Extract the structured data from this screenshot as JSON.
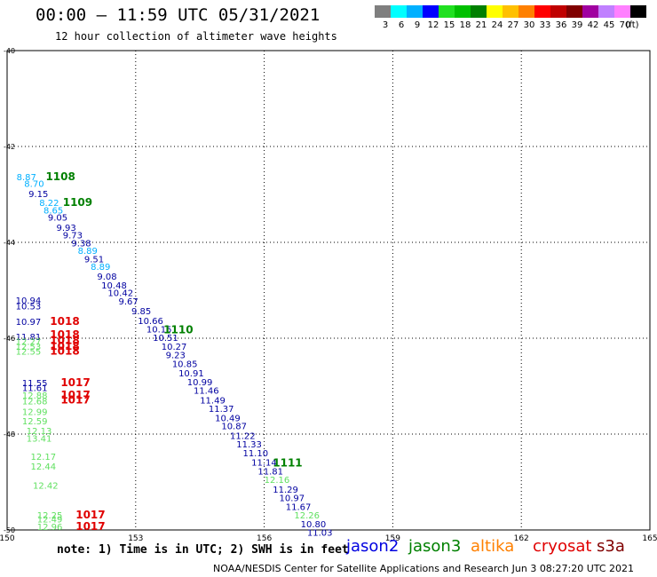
{
  "header": {
    "title": "00:00 — 11:59 UTC 05/31/2021",
    "subtitle": "12 hour collection of altimeter wave heights"
  },
  "colorbar": {
    "colors": [
      "#7f7f7f",
      "#00ffff",
      "#00b0ff",
      "#0000ff",
      "#20e020",
      "#00c000",
      "#008000",
      "#ffff00",
      "#ffc000",
      "#ff8000",
      "#ff0000",
      "#c00000",
      "#800000",
      "#a000a0",
      "#c080ff",
      "#ff80ff",
      "#000000"
    ],
    "labels": [
      "3",
      "6",
      "9",
      "12",
      "15",
      "18",
      "21",
      "24",
      "27",
      "30",
      "33",
      "36",
      "39",
      "42",
      "45",
      "70",
      "(ft)"
    ]
  },
  "chart_data": {
    "type": "scatter",
    "title": "12 hour collection of altimeter wave heights",
    "x_label": "",
    "y_label": "",
    "xlim": [
      150,
      165
    ],
    "ylim": [
      -50,
      -40
    ],
    "x_ticks": [
      "150",
      "153",
      "156",
      "159",
      "162",
      "165"
    ],
    "y_ticks": [
      "-40",
      "-42",
      "-44",
      "-46",
      "-48",
      "-50"
    ],
    "grid": true,
    "wave_heights": [
      {
        "lon": 150.22,
        "lat": -42.7,
        "text": "8.87",
        "color": "#00b0ff"
      },
      {
        "lon": 150.4,
        "lat": -42.84,
        "text": "8.70",
        "color": "#00b0ff"
      },
      {
        "lon": 150.5,
        "lat": -43.06,
        "text": "9.15",
        "color": "#0000a0"
      },
      {
        "lon": 150.75,
        "lat": -43.24,
        "text": "8.22",
        "color": "#00b0ff"
      },
      {
        "lon": 150.85,
        "lat": -43.4,
        "text": "8.65",
        "color": "#00b0ff"
      },
      {
        "lon": 150.95,
        "lat": -43.55,
        "text": "9.05",
        "color": "#0000a0"
      },
      {
        "lon": 151.15,
        "lat": -43.76,
        "text": "9.93",
        "color": "#0000a0"
      },
      {
        "lon": 151.3,
        "lat": -43.92,
        "text": "9.73",
        "color": "#0000a0"
      },
      {
        "lon": 151.5,
        "lat": -44.08,
        "text": "9.38",
        "color": "#0000a0"
      },
      {
        "lon": 151.65,
        "lat": -44.24,
        "text": "8.89",
        "color": "#00b0ff"
      },
      {
        "lon": 151.8,
        "lat": -44.42,
        "text": "9.51",
        "color": "#0000a0"
      },
      {
        "lon": 151.95,
        "lat": -44.57,
        "text": "8.89",
        "color": "#00b0ff"
      },
      {
        "lon": 152.1,
        "lat": -44.78,
        "text": "9.08",
        "color": "#0000a0"
      },
      {
        "lon": 152.2,
        "lat": -44.96,
        "text": "10.48",
        "color": "#0000a0"
      },
      {
        "lon": 152.35,
        "lat": -45.12,
        "text": "10.42",
        "color": "#0000a0"
      },
      {
        "lon": 152.6,
        "lat": -45.3,
        "text": "9.67",
        "color": "#0000a0"
      },
      {
        "lon": 152.9,
        "lat": -45.5,
        "text": "9.85",
        "color": "#0000a0"
      },
      {
        "lon": 153.05,
        "lat": -45.7,
        "text": "10.66",
        "color": "#0000a0"
      },
      {
        "lon": 153.25,
        "lat": -45.88,
        "text": "10.15",
        "color": "#0000a0"
      },
      {
        "lon": 153.4,
        "lat": -46.06,
        "text": "10.51",
        "color": "#0000a0"
      },
      {
        "lon": 153.6,
        "lat": -46.24,
        "text": "10.27",
        "color": "#0000a0"
      },
      {
        "lon": 153.7,
        "lat": -46.42,
        "text": "9.23",
        "color": "#0000a0"
      },
      {
        "lon": 153.85,
        "lat": -46.6,
        "text": "10.85",
        "color": "#0000a0"
      },
      {
        "lon": 154,
        "lat": -46.8,
        "text": "10.91",
        "color": "#0000a0"
      },
      {
        "lon": 154.2,
        "lat": -46.98,
        "text": "10.99",
        "color": "#0000a0"
      },
      {
        "lon": 154.35,
        "lat": -47.16,
        "text": "11.46",
        "color": "#0000a0"
      },
      {
        "lon": 154.5,
        "lat": -47.36,
        "text": "11.49",
        "color": "#0000a0"
      },
      {
        "lon": 154.7,
        "lat": -47.54,
        "text": "11.37",
        "color": "#0000a0"
      },
      {
        "lon": 154.85,
        "lat": -47.73,
        "text": "10.49",
        "color": "#0000a0"
      },
      {
        "lon": 155,
        "lat": -47.9,
        "text": "10.87",
        "color": "#0000a0"
      },
      {
        "lon": 155.2,
        "lat": -48.1,
        "text": "11.22",
        "color": "#0000a0"
      },
      {
        "lon": 155.35,
        "lat": -48.28,
        "text": "11.33",
        "color": "#0000a0"
      },
      {
        "lon": 155.5,
        "lat": -48.46,
        "text": "11.10",
        "color": "#0000a0"
      },
      {
        "lon": 155.7,
        "lat": -48.66,
        "text": "11.14",
        "color": "#0000a0"
      },
      {
        "lon": 155.85,
        "lat": -48.84,
        "text": "11.81",
        "color": "#0000a0"
      },
      {
        "lon": 156.0,
        "lat": -49.02,
        "text": "12.16",
        "color": "#60e060"
      },
      {
        "lon": 156.2,
        "lat": -49.22,
        "text": "11.29",
        "color": "#0000a0"
      },
      {
        "lon": 156.35,
        "lat": -49.4,
        "text": "10.97",
        "color": "#0000a0"
      },
      {
        "lon": 156.5,
        "lat": -49.58,
        "text": "11.67",
        "color": "#0000a0"
      },
      {
        "lon": 156.7,
        "lat": -49.76,
        "text": "12.26",
        "color": "#60e060"
      },
      {
        "lon": 156.85,
        "lat": -49.94,
        "text": "10.80",
        "color": "#0000a0"
      },
      {
        "lon": 157.0,
        "lat": -50.12,
        "text": "11.03",
        "color": "#0000a0"
      },
      {
        "lon": 150.2,
        "lat": -45.28,
        "text": "10.94",
        "color": "#0000a0"
      },
      {
        "lon": 150.2,
        "lat": -45.4,
        "text": "10.53",
        "color": "#0000a0"
      },
      {
        "lon": 150.2,
        "lat": -45.72,
        "text": "10.97",
        "color": "#0000a0"
      },
      {
        "lon": 150.2,
        "lat": -46.04,
        "text": "11.81",
        "color": "#0000a0"
      },
      {
        "lon": 150.2,
        "lat": -46.14,
        "text": "12.27",
        "color": "#60e060"
      },
      {
        "lon": 150.2,
        "lat": -46.24,
        "text": "12.53",
        "color": "#60e060"
      },
      {
        "lon": 150.2,
        "lat": -46.34,
        "text": "12.55",
        "color": "#60e060"
      },
      {
        "lon": 150.35,
        "lat": -47.0,
        "text": "11.55",
        "color": "#0000a0"
      },
      {
        "lon": 150.35,
        "lat": -47.1,
        "text": "11.61",
        "color": "#0000a0"
      },
      {
        "lon": 150.35,
        "lat": -47.26,
        "text": "12.88",
        "color": "#60e060"
      },
      {
        "lon": 150.35,
        "lat": -47.38,
        "text": "12.68",
        "color": "#60e060"
      },
      {
        "lon": 150.35,
        "lat": -47.6,
        "text": "12.99",
        "color": "#60e060"
      },
      {
        "lon": 150.35,
        "lat": -47.8,
        "text": "12.59",
        "color": "#60e060"
      },
      {
        "lon": 150.45,
        "lat": -48.0,
        "text": "12.13",
        "color": "#60e060"
      },
      {
        "lon": 150.45,
        "lat": -48.16,
        "text": "13.41",
        "color": "#60e060"
      },
      {
        "lon": 150.55,
        "lat": -48.54,
        "text": "12.17",
        "color": "#60e060"
      },
      {
        "lon": 150.55,
        "lat": -48.74,
        "text": "12.44",
        "color": "#60e060"
      },
      {
        "lon": 150.6,
        "lat": -49.14,
        "text": "12.42",
        "color": "#60e060"
      },
      {
        "lon": 150.7,
        "lat": -49.76,
        "text": "12.25",
        "color": "#60e060"
      },
      {
        "lon": 150.7,
        "lat": -49.84,
        "text": "12.49",
        "color": "#60e060"
      },
      {
        "lon": 150.7,
        "lat": -50.0,
        "text": "12.96",
        "color": "#60e060"
      }
    ],
    "pressure_labels": [
      {
        "lon": 150.9,
        "lat": -42.7,
        "text": "1108",
        "color": "#008000"
      },
      {
        "lon": 151.3,
        "lat": -43.24,
        "text": "1109",
        "color": "#008000"
      },
      {
        "lon": 153.65,
        "lat": -45.9,
        "text": "1110",
        "color": "#008000"
      },
      {
        "lon": 156.2,
        "lat": -48.68,
        "text": "1111",
        "color": "#008000"
      },
      {
        "lon": 151.0,
        "lat": -45.72,
        "text": "1018",
        "color": "#e00000"
      },
      {
        "lon": 151.0,
        "lat": -46.0,
        "text": "1018",
        "color": "#e00000"
      },
      {
        "lon": 151.0,
        "lat": -46.12,
        "text": "1018",
        "color": "#e00000"
      },
      {
        "lon": 151.0,
        "lat": -46.24,
        "text": "1018",
        "color": "#e00000"
      },
      {
        "lon": 151.0,
        "lat": -46.34,
        "text": "1018",
        "color": "#e00000"
      },
      {
        "lon": 151.25,
        "lat": -47.0,
        "text": "1017",
        "color": "#e00000"
      },
      {
        "lon": 151.25,
        "lat": -47.26,
        "text": "1017",
        "color": "#e00000"
      },
      {
        "lon": 151.25,
        "lat": -47.36,
        "text": "1017",
        "color": "#e00000"
      },
      {
        "lon": 151.6,
        "lat": -49.76,
        "text": "1017",
        "color": "#e00000"
      },
      {
        "lon": 151.6,
        "lat": -50.0,
        "text": "1017",
        "color": "#e00000"
      }
    ]
  },
  "note": "note: 1) Time is in UTC; 2) SWH is in feet",
  "satellites": [
    {
      "name": "jason2",
      "color": "#0000e0"
    },
    {
      "name": "jason3",
      "color": "#008000"
    },
    {
      "name": "altika",
      "color": "#ff8000"
    },
    {
      "name": "cryosat",
      "color": "#e00000"
    },
    {
      "name": "s3a",
      "color": "#800000"
    }
  ],
  "footer": "NOAA/NESDIS Center for Satellite Applications and Research   Jun  3 08:27:20 UTC 2021"
}
